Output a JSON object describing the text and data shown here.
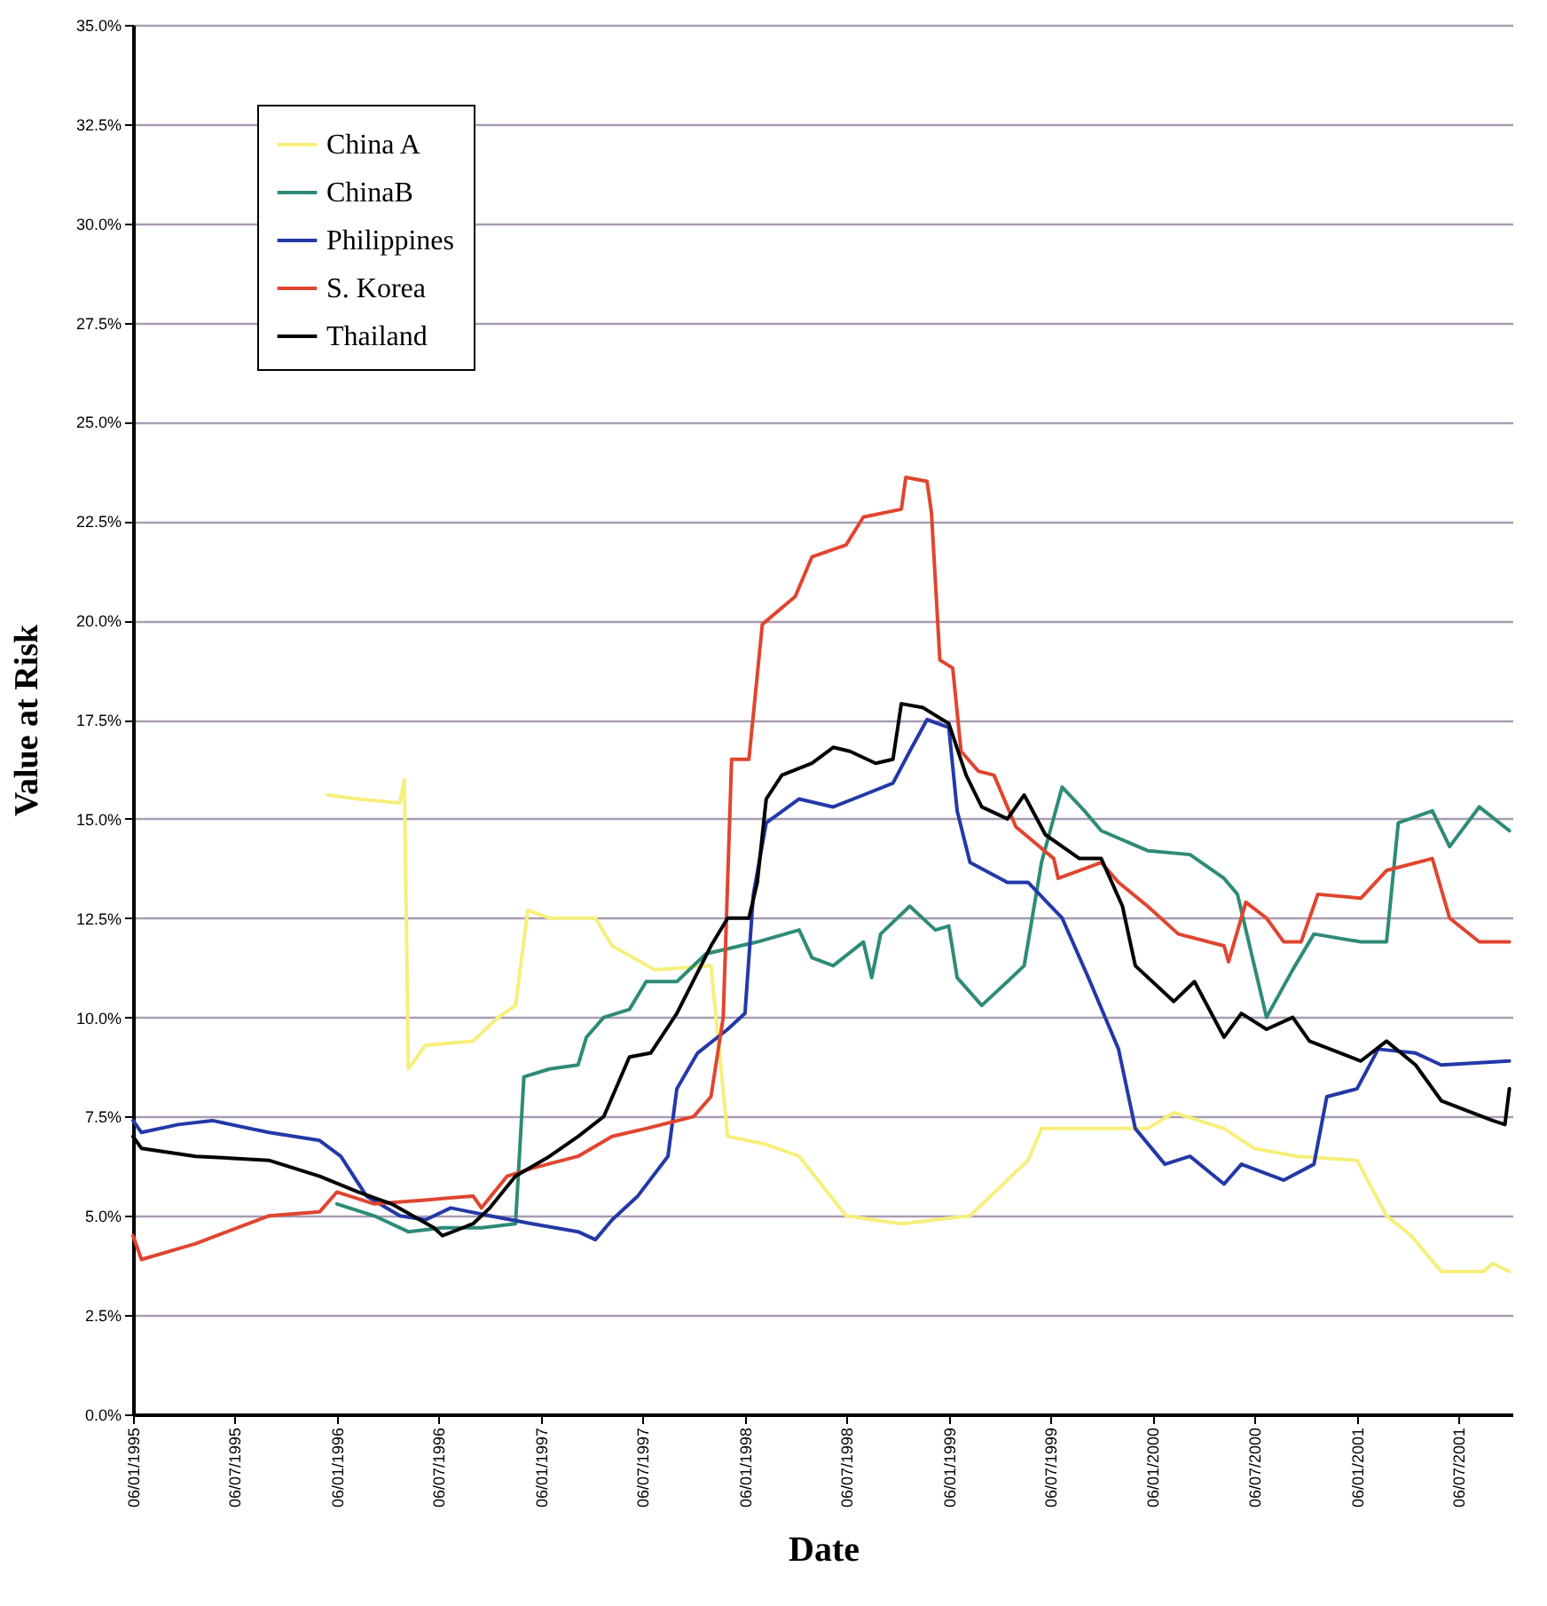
{
  "chart_data": {
    "type": "line",
    "xlabel": "Date",
    "ylabel": "Value at Risk",
    "legend": "top left",
    "grid": "y",
    "line_style": "solid",
    "xlim": [
      "1995-01-06",
      "2001-10-13"
    ],
    "xticks": [
      {
        "value": "1995-01-06",
        "label": "06/01/1995"
      },
      {
        "value": "1995-07-06",
        "label": "06/07/1995"
      },
      {
        "value": "1996-01-06",
        "label": "06/01/1996"
      },
      {
        "value": "1996-07-06",
        "label": "06/07/1996"
      },
      {
        "value": "1997-01-06",
        "label": "06/01/1997"
      },
      {
        "value": "1997-07-06",
        "label": "06/07/1997"
      },
      {
        "value": "1998-01-06",
        "label": "06/01/1998"
      },
      {
        "value": "1998-07-06",
        "label": "06/07/1998"
      },
      {
        "value": "1999-01-06",
        "label": "06/01/1999"
      },
      {
        "value": "1999-07-06",
        "label": "06/07/1999"
      },
      {
        "value": "2000-01-06",
        "label": "06/01/2000"
      },
      {
        "value": "2000-07-06",
        "label": "06/07/2000"
      },
      {
        "value": "2001-01-06",
        "label": "06/01/2001"
      },
      {
        "value": "2001-07-06",
        "label": "06/07/2001"
      }
    ],
    "ylim": [
      0,
      35
    ],
    "yticks": [
      {
        "value": 0,
        "label": "0.0%"
      },
      {
        "value": 2.5,
        "label": "2.5%"
      },
      {
        "value": 5,
        "label": "5.0%"
      },
      {
        "value": 7.5,
        "label": "7.5%"
      },
      {
        "value": 10,
        "label": "10.0%"
      },
      {
        "value": 12.5,
        "label": "12.5%"
      },
      {
        "value": 15,
        "label": "15.0%"
      },
      {
        "value": 17.5,
        "label": "17.5%"
      },
      {
        "value": 20,
        "label": "20.0%"
      },
      {
        "value": 22.5,
        "label": "22.5%"
      },
      {
        "value": 25,
        "label": "25.0%"
      },
      {
        "value": 27.5,
        "label": "27.5%"
      },
      {
        "value": 30,
        "label": "30.0%"
      },
      {
        "value": 32.5,
        "label": "32.5%"
      },
      {
        "value": 35,
        "label": "35.0%"
      }
    ],
    "series": [
      {
        "name": "China A",
        "color": "#f7ef7c",
        "x": [
          "1995-12-21",
          "1996-02-13",
          "1996-04-28",
          "1996-05-06",
          "1996-05-13",
          "1996-06-13",
          "1996-09-06",
          "1996-10-21",
          "1996-11-21",
          "1996-12-13",
          "1997-01-21",
          "1997-04-13",
          "1997-05-13",
          "1997-07-28",
          "1997-11-06",
          "1997-12-06",
          "1998-02-13",
          "1998-04-13",
          "1998-07-06",
          "1998-10-13",
          "1999-02-13",
          "1999-05-28",
          "1999-06-21",
          "1999-12-28",
          "2000-02-13",
          "2000-05-13",
          "2000-07-06",
          "2000-09-21",
          "2001-01-06",
          "2001-02-28",
          "2001-04-13",
          "2001-06-06",
          "2001-08-21",
          "2001-09-06",
          "2001-10-06"
        ],
        "values": [
          15.6,
          15.5,
          15.4,
          16.0,
          8.7,
          9.3,
          9.4,
          10.0,
          10.3,
          12.7,
          12.5,
          12.5,
          11.8,
          11.2,
          11.3,
          7.0,
          6.8,
          6.5,
          5.0,
          4.8,
          5.0,
          6.4,
          7.2,
          7.2,
          7.6,
          7.2,
          6.7,
          6.5,
          6.4,
          5.0,
          4.5,
          3.6,
          3.6,
          3.8,
          3.6
        ]
      },
      {
        "name": "ChinaB",
        "color": "#2e8b78",
        "x": [
          "1996-01-06",
          "1996-03-13",
          "1996-05-13",
          "1996-07-13",
          "1996-09-21",
          "1996-11-21",
          "1996-12-06",
          "1997-01-21",
          "1997-03-13",
          "1997-03-28",
          "1997-04-28",
          "1997-06-13",
          "1997-07-13",
          "1997-09-06",
          "1997-10-28",
          "1998-01-28",
          "1998-04-13",
          "1998-05-06",
          "1998-06-13",
          "1998-08-06",
          "1998-08-21",
          "1998-09-06",
          "1998-10-28",
          "1998-12-13",
          "1999-01-06",
          "1999-01-21",
          "1999-03-06",
          "1999-04-21",
          "1999-05-21",
          "1999-06-21",
          "1999-07-28",
          "1999-09-06",
          "1999-10-06",
          "1999-12-28",
          "2000-03-13",
          "2000-05-13",
          "2000-06-06",
          "2000-07-28",
          "2000-09-13",
          "2000-10-21",
          "2001-01-13",
          "2001-02-28",
          "2001-03-21",
          "2001-05-21",
          "2001-06-21",
          "2001-08-13",
          "2001-10-06"
        ],
        "values": [
          5.3,
          5.0,
          4.6,
          4.7,
          4.7,
          4.8,
          8.5,
          8.7,
          8.8,
          9.5,
          10.0,
          10.2,
          10.9,
          10.9,
          11.6,
          11.9,
          12.2,
          11.5,
          11.3,
          11.9,
          11.0,
          12.1,
          12.8,
          12.2,
          12.3,
          11.0,
          10.3,
          10.9,
          11.3,
          13.9,
          15.8,
          15.2,
          14.7,
          14.2,
          14.1,
          13.5,
          13.1,
          10.0,
          11.2,
          12.1,
          11.9,
          11.9,
          14.9,
          15.2,
          14.3,
          15.3,
          14.7
        ]
      },
      {
        "name": "Philippines",
        "color": "#2438a8",
        "x": [
          "1995-01-06",
          "1995-01-21",
          "1995-03-28",
          "1995-05-28",
          "1995-09-06",
          "1995-12-06",
          "1996-01-13",
          "1996-02-28",
          "1996-04-28",
          "1996-06-13",
          "1996-07-28",
          "1996-10-06",
          "1996-12-21",
          "1997-03-13",
          "1997-04-13",
          "1997-05-13",
          "1997-06-28",
          "1997-08-21",
          "1997-09-06",
          "1997-10-13",
          "1997-12-06",
          "1998-01-06",
          "1998-01-21",
          "1998-02-13",
          "1998-04-13",
          "1998-06-13",
          "1998-08-06",
          "1998-09-28",
          "1998-10-28",
          "1998-11-28",
          "1999-01-06",
          "1999-01-21",
          "1999-02-13",
          "1999-04-21",
          "1999-05-28",
          "1999-07-28",
          "1999-09-13",
          "1999-11-06",
          "1999-12-06",
          "2000-01-28",
          "2000-03-13",
          "2000-05-13",
          "2000-06-13",
          "2000-08-28",
          "2000-10-21",
          "2000-11-13",
          "2001-01-06",
          "2001-02-13",
          "2001-04-21",
          "2001-06-06",
          "2001-10-06"
        ],
        "values": [
          7.4,
          7.1,
          7.3,
          7.4,
          7.1,
          6.9,
          6.5,
          5.5,
          5.0,
          4.9,
          5.2,
          5.0,
          4.8,
          4.6,
          4.4,
          4.9,
          5.5,
          6.5,
          8.2,
          9.1,
          9.7,
          10.1,
          13.1,
          14.9,
          15.5,
          15.3,
          15.6,
          15.9,
          16.7,
          17.5,
          17.3,
          15.2,
          13.9,
          13.4,
          13.4,
          12.5,
          11.0,
          9.2,
          7.2,
          6.3,
          6.5,
          5.8,
          6.3,
          5.9,
          6.3,
          8.0,
          8.2,
          9.2,
          9.1,
          8.8,
          8.9
        ]
      },
      {
        "name": "S. Korea",
        "color": "#e0452f",
        "x": [
          "1995-01-06",
          "1995-01-21",
          "1995-04-28",
          "1995-09-06",
          "1995-12-06",
          "1996-01-06",
          "1996-03-13",
          "1996-06-13",
          "1996-09-06",
          "1996-09-21",
          "1996-11-06",
          "1996-12-21",
          "1997-03-13",
          "1997-05-13",
          "1997-07-13",
          "1997-10-06",
          "1997-11-06",
          "1997-11-28",
          "1997-12-13",
          "1998-01-13",
          "1998-02-06",
          "1998-04-06",
          "1998-05-06",
          "1998-07-06",
          "1998-08-06",
          "1998-10-13",
          "1998-10-21",
          "1998-11-28",
          "1998-12-06",
          "1998-12-21",
          "1999-01-13",
          "1999-01-28",
          "1999-02-28",
          "1999-03-28",
          "1999-05-06",
          "1999-07-13",
          "1999-07-21",
          "1999-10-06",
          "1999-11-06",
          "1999-12-28",
          "2000-02-21",
          "2000-05-13",
          "2000-05-21",
          "2000-06-21",
          "2000-07-28",
          "2000-08-28",
          "2000-09-28",
          "2000-10-28",
          "2001-01-13",
          "2001-02-28",
          "2001-05-21",
          "2001-06-21",
          "2001-08-13",
          "2001-10-06"
        ],
        "values": [
          4.5,
          3.9,
          4.3,
          5.0,
          5.1,
          5.6,
          5.3,
          5.4,
          5.5,
          5.2,
          6.0,
          6.2,
          6.5,
          7.0,
          7.2,
          7.5,
          8.0,
          10.0,
          16.5,
          16.5,
          19.9,
          20.6,
          21.6,
          21.9,
          22.6,
          22.8,
          23.6,
          23.5,
          22.7,
          19.0,
          18.8,
          16.7,
          16.2,
          16.1,
          14.8,
          14.0,
          13.5,
          13.9,
          13.4,
          12.8,
          12.1,
          11.8,
          11.4,
          12.9,
          12.5,
          11.9,
          11.9,
          13.1,
          13.0,
          13.7,
          14.0,
          12.5,
          11.9,
          11.9
        ]
      },
      {
        "name": "Thailand",
        "color": "#000000",
        "x": [
          "1995-01-06",
          "1995-01-21",
          "1995-04-28",
          "1995-09-06",
          "1995-12-06",
          "1996-02-13",
          "1996-04-13",
          "1996-06-28",
          "1996-07-13",
          "1996-09-06",
          "1996-10-06",
          "1996-11-21",
          "1997-01-21",
          "1997-03-13",
          "1997-04-28",
          "1997-06-13",
          "1997-07-21",
          "1997-09-06",
          "1997-11-06",
          "1997-12-06",
          "1998-01-13",
          "1998-01-28",
          "1998-02-13",
          "1998-03-13",
          "1998-05-06",
          "1998-06-13",
          "1998-07-13",
          "1998-08-28",
          "1998-09-28",
          "1998-10-13",
          "1998-11-21",
          "1999-01-06",
          "1999-02-06",
          "1999-03-06",
          "1999-04-21",
          "1999-05-21",
          "1999-06-28",
          "1999-08-28",
          "1999-10-06",
          "1999-11-13",
          "1999-12-06",
          "2000-02-13",
          "2000-03-21",
          "2000-05-13",
          "2000-06-13",
          "2000-07-28",
          "2000-09-13",
          "2000-10-13",
          "2001-01-13",
          "2001-02-28",
          "2001-04-21",
          "2001-06-06",
          "2001-09-06",
          "2001-09-28",
          "2001-10-06"
        ],
        "values": [
          7.0,
          6.7,
          6.5,
          6.4,
          6.0,
          5.6,
          5.3,
          4.7,
          4.5,
          4.8,
          5.2,
          6.0,
          6.5,
          7.0,
          7.5,
          9.0,
          9.1,
          10.1,
          11.8,
          12.5,
          12.5,
          13.4,
          15.5,
          16.1,
          16.4,
          16.8,
          16.7,
          16.4,
          16.5,
          17.9,
          17.8,
          17.4,
          16.1,
          15.3,
          15.0,
          15.6,
          14.6,
          14.0,
          14.0,
          12.8,
          11.3,
          10.4,
          10.9,
          9.5,
          10.1,
          9.7,
          10.0,
          9.4,
          8.9,
          9.4,
          8.8,
          7.9,
          7.4,
          7.3,
          8.2
        ]
      }
    ]
  }
}
